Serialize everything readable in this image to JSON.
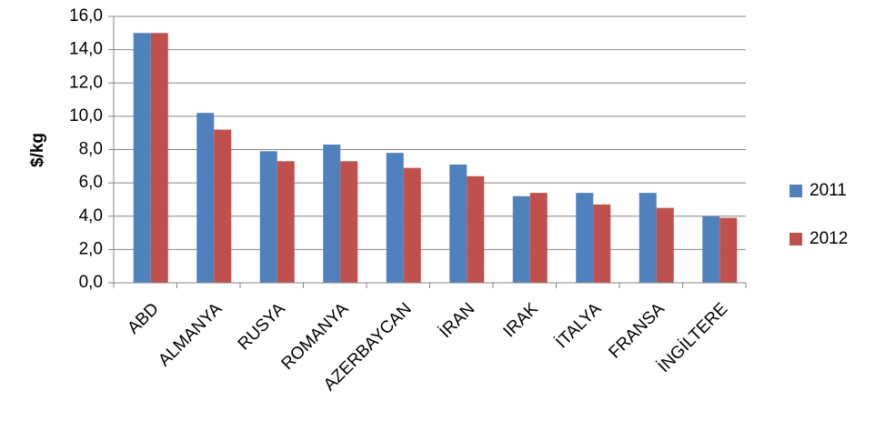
{
  "chart_data": {
    "type": "bar",
    "ylabel": "$/kg",
    "categories": [
      "ABD",
      "ALMANYA",
      "RUSYA",
      "ROMANYA",
      "AZERBAYCAN",
      "İRAN",
      "IRAK",
      "İTALYA",
      "FRANSA",
      "İNGİLTERE"
    ],
    "series": [
      {
        "name": "2011",
        "color": "#4f81bd",
        "values": [
          15.0,
          10.2,
          7.9,
          8.3,
          7.8,
          7.1,
          5.2,
          5.4,
          5.4,
          4.0
        ]
      },
      {
        "name": "2012",
        "color": "#c0504d",
        "values": [
          15.0,
          9.2,
          7.3,
          7.3,
          6.9,
          6.4,
          5.4,
          4.7,
          4.5,
          3.9
        ]
      }
    ],
    "ylim": [
      0,
      16
    ],
    "yticks": [
      {
        "value": 0,
        "label": "0,0"
      },
      {
        "value": 2,
        "label": "2,0"
      },
      {
        "value": 4,
        "label": "4,0"
      },
      {
        "value": 6,
        "label": "6,0"
      },
      {
        "value": 8,
        "label": "8,0"
      },
      {
        "value": 10,
        "label": "10,0"
      },
      {
        "value": 12,
        "label": "12,0"
      },
      {
        "value": 14,
        "label": "14,0"
      },
      {
        "value": 16,
        "label": "16,0"
      }
    ],
    "grid": true,
    "legend": "right"
  }
}
